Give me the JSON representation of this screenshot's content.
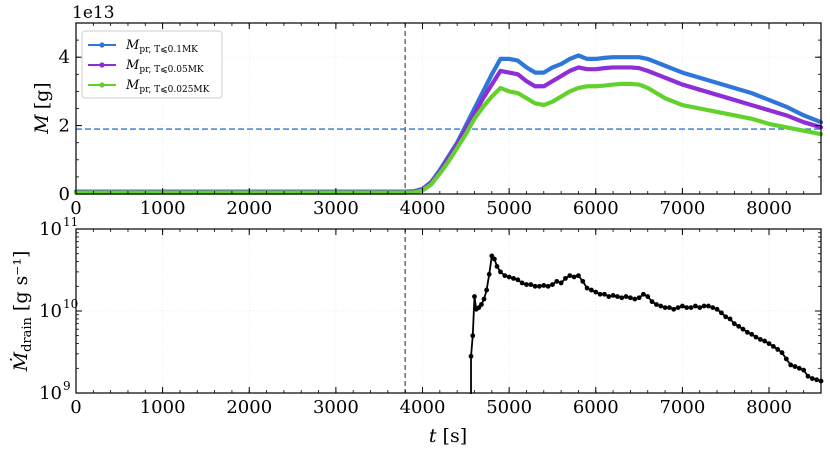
{
  "chart_data": [
    {
      "type": "line",
      "panel": "top",
      "offset_text": "1e13",
      "ylabel_main": "M",
      "ylabel_unit": "[g]",
      "xlim": [
        0,
        8600
      ],
      "ylim": [
        0,
        5
      ],
      "xticks": [
        "0",
        "1000",
        "2000",
        "3000",
        "4000",
        "5000",
        "6000",
        "7000",
        "8000"
      ],
      "yticks": [
        "0",
        "2",
        "4"
      ],
      "grid": true,
      "legend_position": "top-left",
      "vline_x": 3800,
      "hline_y": 1.9,
      "series": [
        {
          "name": "M_pr, T⩽0.1MK",
          "legend_main": "M",
          "legend_sub": "pr, T⩽0.1MK",
          "color": "#2e77d8",
          "x": [
            0,
            3800,
            3900,
            4000,
            4100,
            4200,
            4300,
            4400,
            4500,
            4600,
            4700,
            4800,
            4900,
            5000,
            5100,
            5200,
            5300,
            5400,
            5500,
            5600,
            5700,
            5800,
            5900,
            6000,
            6100,
            6200,
            6300,
            6400,
            6500,
            6600,
            6700,
            6800,
            6900,
            7000,
            7200,
            7400,
            7600,
            7800,
            8000,
            8200,
            8400,
            8600
          ],
          "values": [
            0.07,
            0.07,
            0.08,
            0.15,
            0.35,
            0.7,
            1.1,
            1.5,
            2.0,
            2.5,
            3.0,
            3.5,
            3.95,
            3.95,
            3.9,
            3.7,
            3.55,
            3.55,
            3.7,
            3.8,
            3.95,
            4.05,
            3.95,
            3.95,
            3.98,
            4.0,
            4.0,
            4.0,
            4.0,
            3.95,
            3.85,
            3.75,
            3.65,
            3.55,
            3.4,
            3.25,
            3.1,
            2.95,
            2.75,
            2.55,
            2.3,
            2.1
          ]
        },
        {
          "name": "M_pr, T⩽0.05MK",
          "legend_main": "M",
          "legend_sub": "pr, T⩽0.05MK",
          "color": "#8e2ed6",
          "x": [
            0,
            3800,
            3900,
            4000,
            4100,
            4200,
            4300,
            4400,
            4500,
            4600,
            4700,
            4800,
            4900,
            5000,
            5100,
            5200,
            5300,
            5400,
            5500,
            5600,
            5700,
            5800,
            5900,
            6000,
            6100,
            6200,
            6300,
            6400,
            6500,
            6600,
            6700,
            6800,
            6900,
            7000,
            7200,
            7400,
            7600,
            7800,
            8000,
            8200,
            8400,
            8600
          ],
          "values": [
            0.05,
            0.05,
            0.06,
            0.13,
            0.32,
            0.65,
            1.05,
            1.45,
            1.9,
            2.35,
            2.8,
            3.2,
            3.6,
            3.55,
            3.5,
            3.3,
            3.15,
            3.15,
            3.3,
            3.45,
            3.6,
            3.7,
            3.65,
            3.65,
            3.68,
            3.7,
            3.7,
            3.7,
            3.68,
            3.6,
            3.5,
            3.4,
            3.3,
            3.2,
            3.05,
            2.9,
            2.75,
            2.6,
            2.45,
            2.3,
            2.1,
            1.95
          ]
        },
        {
          "name": "M_pr, T⩽0.025MK",
          "legend_main": "M",
          "legend_sub": "pr, T⩽0.025MK",
          "color": "#62d12c",
          "x": [
            0,
            3800,
            3900,
            4000,
            4100,
            4200,
            4300,
            4400,
            4500,
            4600,
            4700,
            4800,
            4900,
            5000,
            5100,
            5200,
            5300,
            5400,
            5500,
            5600,
            5700,
            5800,
            5900,
            6000,
            6100,
            6200,
            6300,
            6400,
            6500,
            6600,
            6700,
            6800,
            6900,
            7000,
            7200,
            7400,
            7600,
            7800,
            8000,
            8200,
            8400,
            8600
          ],
          "values": [
            0.04,
            0.04,
            0.05,
            0.1,
            0.28,
            0.6,
            0.95,
            1.35,
            1.75,
            2.2,
            2.55,
            2.85,
            3.1,
            3.0,
            2.95,
            2.8,
            2.65,
            2.6,
            2.7,
            2.85,
            3.0,
            3.1,
            3.15,
            3.15,
            3.17,
            3.2,
            3.22,
            3.22,
            3.2,
            3.1,
            2.95,
            2.8,
            2.7,
            2.6,
            2.5,
            2.4,
            2.3,
            2.2,
            2.05,
            1.95,
            1.85,
            1.75
          ]
        }
      ]
    },
    {
      "type": "line",
      "panel": "bottom",
      "ylabel_main": "Ṁ",
      "ylabel_sub": "drain",
      "ylabel_unit": "[g s⁻¹]",
      "xlabel_main": "t",
      "xlabel_unit": "[s]",
      "xlim": [
        0,
        8600
      ],
      "ylim": [
        1000000000.0,
        100000000000.0
      ],
      "yscale": "log",
      "xticks": [
        "0",
        "1000",
        "2000",
        "3000",
        "4000",
        "5000",
        "6000",
        "7000",
        "8000"
      ],
      "yticks": [
        {
          "value": 1000000000.0,
          "base": "10",
          "exp": "9"
        },
        {
          "value": 10000000000.0,
          "base": "10",
          "exp": "10"
        },
        {
          "value": 100000000000.0,
          "base": "10",
          "exp": "11"
        }
      ],
      "grid": true,
      "vline_x": 3800,
      "series": [
        {
          "color": "#000000",
          "x": [
            4560,
            4580,
            4600,
            4620,
            4650,
            4680,
            4710,
            4740,
            4770,
            4800,
            4830,
            4860,
            4900,
            4950,
            5000,
            5050,
            5100,
            5150,
            5200,
            5250,
            5300,
            5350,
            5400,
            5450,
            5500,
            5550,
            5600,
            5650,
            5700,
            5750,
            5800,
            5850,
            5900,
            5950,
            6000,
            6050,
            6100,
            6150,
            6200,
            6250,
            6300,
            6350,
            6400,
            6450,
            6500,
            6550,
            6600,
            6650,
            6700,
            6750,
            6800,
            6850,
            6900,
            6950,
            7000,
            7050,
            7100,
            7150,
            7200,
            7250,
            7300,
            7350,
            7400,
            7450,
            7500,
            7550,
            7600,
            7650,
            7700,
            7750,
            7800,
            7850,
            7900,
            7950,
            8000,
            8050,
            8100,
            8150,
            8200,
            8250,
            8300,
            8350,
            8400,
            8450,
            8500,
            8550,
            8600
          ],
          "values": [
            2800000000.0,
            5000000000.0,
            15000000000.0,
            10500000000.0,
            11000000000.0,
            12000000000.0,
            14000000000.0,
            18000000000.0,
            28000000000.0,
            47000000000.0,
            43000000000.0,
            35000000000.0,
            30000000000.0,
            27000000000.0,
            26000000000.0,
            25000000000.0,
            24000000000.0,
            22000000000.0,
            21000000000.0,
            21000000000.0,
            20000000000.0,
            20000000000.0,
            20500000000.0,
            20000000000.0,
            21000000000.0,
            23000000000.0,
            22000000000.0,
            25000000000.0,
            27000000000.0,
            26000000000.0,
            27000000000.0,
            23000000000.0,
            19000000000.0,
            18000000000.0,
            17000000000.0,
            16000000000.0,
            16000000000.0,
            15000000000.0,
            15500000000.0,
            15000000000.0,
            14500000000.0,
            15000000000.0,
            14500000000.0,
            14000000000.0,
            14500000000.0,
            16000000000.0,
            15000000000.0,
            13000000000.0,
            12000000000.0,
            11500000000.0,
            11000000000.0,
            11000000000.0,
            10500000000.0,
            11000000000.0,
            11500000000.0,
            11000000000.0,
            11000000000.0,
            11500000000.0,
            11000000000.0,
            11500000000.0,
            11500000000.0,
            11000000000.0,
            10500000000.0,
            9500000000.0,
            8500000000.0,
            8000000000.0,
            7000000000.0,
            6500000000.0,
            6000000000.0,
            5500000000.0,
            5200000000.0,
            4800000000.0,
            4500000000.0,
            4300000000.0,
            4000000000.0,
            3700000000.0,
            3400000000.0,
            3100000000.0,
            2600000000.0,
            2200000000.0,
            2100000000.0,
            2000000000.0,
            1900000000.0,
            1600000000.0,
            1500000000.0,
            1450000000.0,
            1400000000.0
          ]
        }
      ]
    }
  ]
}
